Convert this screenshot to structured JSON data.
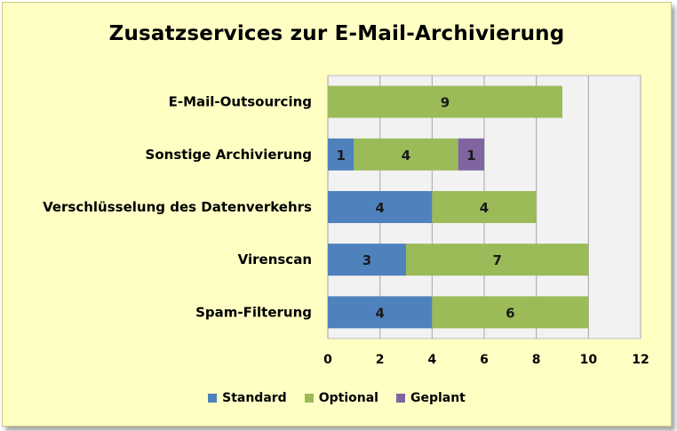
{
  "chart_data": {
    "type": "bar",
    "orientation": "horizontal",
    "stacked": true,
    "title": "Zusatzservices  zur E-Mail-Archivierung",
    "categories": [
      "E-Mail-Outsourcing",
      "Sonstige Archivierung",
      "Verschlüsselung des Datenverkehrs",
      "Virenscan",
      "Spam-Filterung"
    ],
    "series": [
      {
        "name": "Standard",
        "color": "#4f81bd",
        "values": [
          0,
          1,
          4,
          3,
          4
        ]
      },
      {
        "name": "Optional",
        "color": "#9bbb59",
        "values": [
          9,
          4,
          4,
          7,
          6
        ]
      },
      {
        "name": "Geplant",
        "color": "#8064a2",
        "values": [
          0,
          1,
          0,
          0,
          0
        ]
      }
    ],
    "xlim": [
      0,
      12
    ],
    "xticks": [
      "0",
      "2",
      "4",
      "6",
      "8",
      "10",
      "12"
    ],
    "grid": true,
    "legend_position": "bottom",
    "plot_background": "#f2f2f2"
  }
}
